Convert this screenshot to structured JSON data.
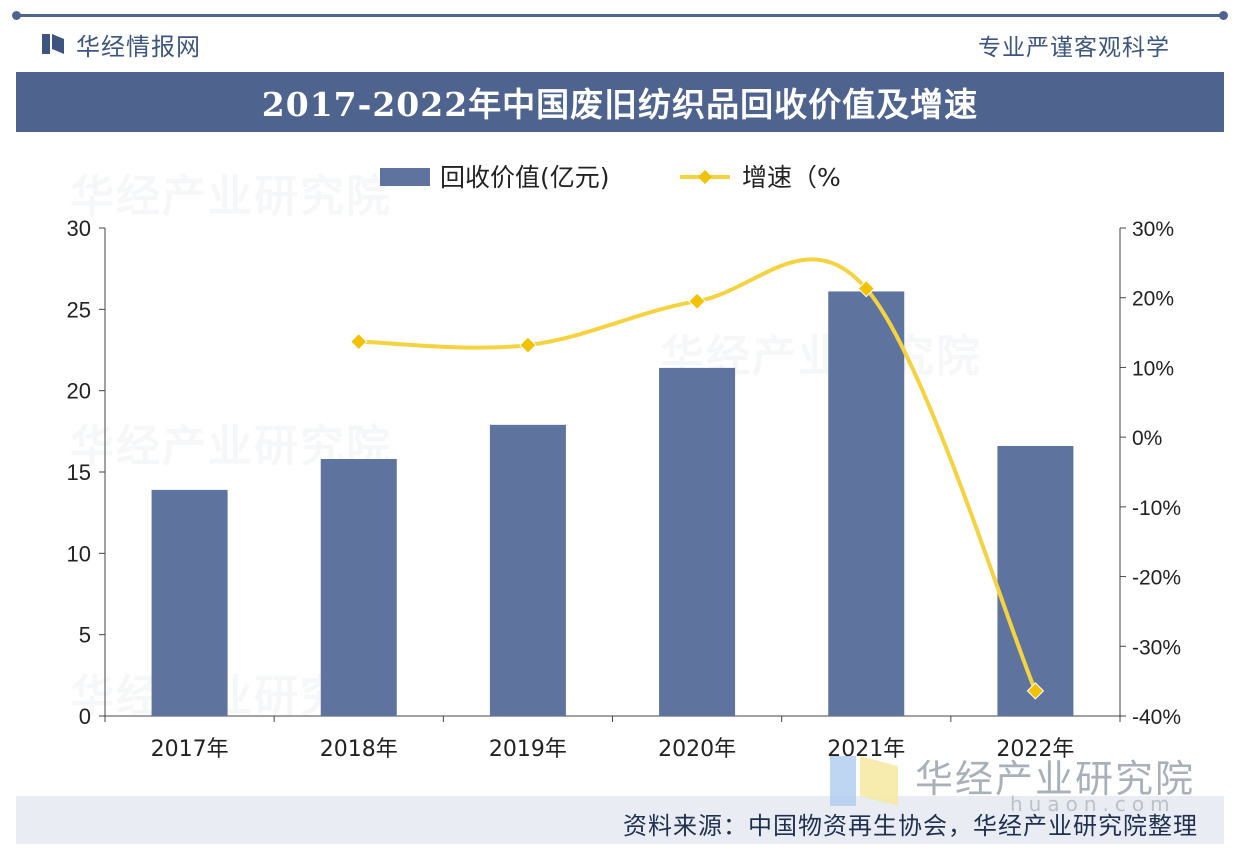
{
  "header": {
    "brand": "华经情报网",
    "slogan": "专业严谨客观科学",
    "title": "2017-2022年中国废旧纺织品回收价值及增速"
  },
  "colors": {
    "bar": "#5e749f",
    "line": "#f5d340",
    "marker": "#f2c100",
    "header": "#4e648f"
  },
  "chart_data": {
    "type": "bar",
    "title": "2017-2022年中国废旧纺织品回收价值及增速",
    "categories": [
      "2017年",
      "2018年",
      "2019年",
      "2020年",
      "2021年",
      "2022年"
    ],
    "series": [
      {
        "name": "回收价值(亿元)",
        "type": "bar",
        "axis": "left",
        "values": [
          13.9,
          15.8,
          17.9,
          21.4,
          26.1,
          16.6
        ]
      },
      {
        "name": "增速（%",
        "type": "line",
        "axis": "right",
        "values": [
          null,
          13.7,
          13.2,
          19.5,
          21.3,
          -36.4
        ]
      }
    ],
    "y_left": {
      "min": 0,
      "max": 30,
      "ticks": [
        "0",
        "5",
        "10",
        "15",
        "20",
        "25",
        "30"
      ]
    },
    "y_right": {
      "min": -40,
      "max": 30,
      "ticks": [
        "-40%",
        "-30%",
        "-20%",
        "-10%",
        "0%",
        "10%",
        "20%",
        "30%"
      ]
    },
    "legend": [
      "回收价值(亿元)",
      "增速（%"
    ],
    "legend_position": "top-center"
  },
  "footer": {
    "source": "资料来源：中国物资再生协会，华经产业研究院整理",
    "watermark": "华经产业研究院",
    "watermark_url": "huaon.com"
  }
}
